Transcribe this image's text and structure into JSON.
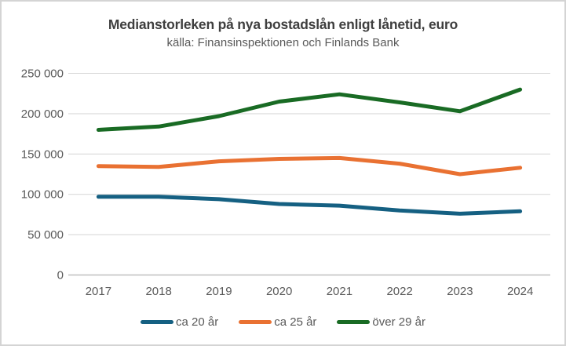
{
  "chart_data": {
    "type": "line",
    "title": "Medianstorleken på nya bostadslån enligt lånetid, euro",
    "subtitle": "källa: Finansinspektionen och Finlands Bank",
    "categories": [
      "2017",
      "2018",
      "2019",
      "2020",
      "2021",
      "2022",
      "2023",
      "2024"
    ],
    "series": [
      {
        "name": "ca 20 år",
        "color": "#156082",
        "values": [
          97000,
          97000,
          94000,
          88000,
          86000,
          80000,
          76000,
          79000
        ]
      },
      {
        "name": "ca 25 år",
        "color": "#E97132",
        "values": [
          135000,
          134000,
          141000,
          144000,
          145000,
          138000,
          125000,
          133000
        ]
      },
      {
        "name": "över 29 år",
        "color": "#196B24",
        "values": [
          180000,
          184000,
          197000,
          215000,
          224000,
          214000,
          203000,
          230000
        ]
      }
    ],
    "y_axis": {
      "min": 0,
      "max": 250000,
      "step": 50000,
      "tick_labels": [
        "0",
        "50 000",
        "100 000",
        "150 000",
        "200 000",
        "250 000"
      ]
    },
    "grid": true,
    "legend_position": "bottom",
    "colors": {
      "title_text": "#3f3f3f",
      "axis_text": "#595959",
      "gridline": "#d9d9d9",
      "axis_line": "#bfbfbf",
      "background": "#ffffff",
      "page_border": "#d4d4d4"
    }
  }
}
